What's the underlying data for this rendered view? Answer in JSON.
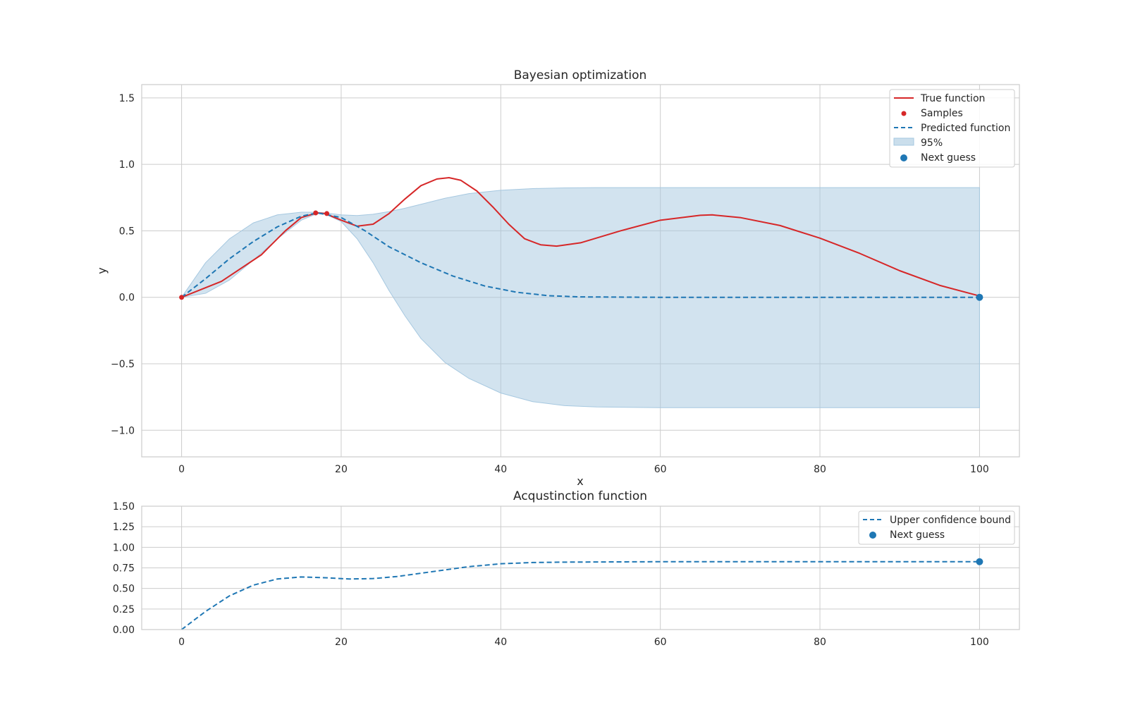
{
  "chart_data": [
    {
      "type": "line",
      "title": "Bayesian optimization",
      "xlabel": "x",
      "ylabel": "y",
      "xlim": [
        -5,
        105
      ],
      "ylim": [
        -1.2,
        1.6
      ],
      "xticks": [
        0,
        20,
        40,
        60,
        80,
        100
      ],
      "yticks": [
        -1.0,
        -0.5,
        0.0,
        0.5,
        1.0,
        1.5
      ],
      "xtick_labels": [
        "0",
        "20",
        "40",
        "60",
        "80",
        "100"
      ],
      "ytick_labels": [
        "−1.0",
        "−0.5",
        "0.0",
        "0.5",
        "1.0",
        "1.5"
      ],
      "grid": true,
      "legend_position": "top-right",
      "colors": {
        "true_function": "#d62728",
        "predicted": "#1f77b4",
        "band": "#a6c8e0",
        "next_guess": "#1f77b4"
      },
      "series": [
        {
          "name": "True function",
          "kind": "line",
          "x": [
            0,
            5,
            10,
            13,
            15,
            17,
            18,
            20,
            22,
            24,
            26,
            28,
            30,
            32,
            33.5,
            35,
            37,
            39,
            41,
            43,
            45,
            47,
            50,
            55,
            60,
            65,
            66.5,
            70,
            75,
            80,
            85,
            90,
            95,
            100
          ],
          "y": [
            0.0,
            0.12,
            0.32,
            0.5,
            0.6,
            0.635,
            0.63,
            0.58,
            0.535,
            0.55,
            0.63,
            0.74,
            0.84,
            0.89,
            0.9,
            0.88,
            0.8,
            0.68,
            0.55,
            0.44,
            0.395,
            0.385,
            0.41,
            0.5,
            0.58,
            0.617,
            0.62,
            0.6,
            0.54,
            0.445,
            0.33,
            0.2,
            0.09,
            0.01
          ]
        },
        {
          "name": "Samples",
          "kind": "scatter",
          "x": [
            0,
            16.8,
            18.2
          ],
          "y": [
            0.0,
            0.635,
            0.63
          ]
        },
        {
          "name": "Predicted function",
          "kind": "dashed-line",
          "x": [
            0,
            3,
            6,
            9,
            12,
            15,
            17,
            20,
            23,
            26,
            30,
            34,
            38,
            42,
            46,
            50,
            60,
            70,
            80,
            90,
            100
          ],
          "y": [
            0.0,
            0.14,
            0.29,
            0.42,
            0.53,
            0.61,
            0.635,
            0.6,
            0.5,
            0.38,
            0.26,
            0.16,
            0.085,
            0.038,
            0.012,
            0.003,
            0.0,
            0.0,
            0.0,
            0.0,
            0.0
          ]
        },
        {
          "name": "95%",
          "kind": "band",
          "x": [
            0,
            3,
            6,
            9,
            12,
            15,
            17,
            18,
            20,
            22,
            24,
            26,
            28,
            30,
            33,
            36,
            40,
            44,
            48,
            52,
            60,
            70,
            80,
            90,
            100
          ],
          "upper": [
            0.0,
            0.26,
            0.44,
            0.56,
            0.62,
            0.64,
            0.64,
            0.635,
            0.62,
            0.615,
            0.625,
            0.645,
            0.67,
            0.7,
            0.745,
            0.78,
            0.805,
            0.818,
            0.823,
            0.825,
            0.825,
            0.825,
            0.825,
            0.825,
            0.825
          ],
          "lower": [
            0.0,
            0.03,
            0.13,
            0.28,
            0.44,
            0.58,
            0.63,
            0.625,
            0.57,
            0.44,
            0.26,
            0.05,
            -0.14,
            -0.31,
            -0.49,
            -0.61,
            -0.72,
            -0.785,
            -0.815,
            -0.825,
            -0.83,
            -0.83,
            -0.83,
            -0.83,
            -0.83
          ]
        },
        {
          "name": "Next guess",
          "kind": "scatter",
          "x": [
            100
          ],
          "y": [
            0.0
          ]
        }
      ]
    },
    {
      "type": "line",
      "title": "Acqustinction function",
      "xlabel": "",
      "ylabel": "",
      "xlim": [
        -5,
        105
      ],
      "ylim": [
        0.0,
        1.5
      ],
      "xticks": [
        0,
        20,
        40,
        60,
        80,
        100
      ],
      "yticks": [
        0.0,
        0.25,
        0.5,
        0.75,
        1.0,
        1.25,
        1.5
      ],
      "xtick_labels": [
        "0",
        "20",
        "40",
        "60",
        "80",
        "100"
      ],
      "ytick_labels": [
        "0.00",
        "0.25",
        "0.50",
        "0.75",
        "1.00",
        "1.25",
        "1.50"
      ],
      "grid": true,
      "legend_position": "top-right",
      "colors": {
        "ucb": "#1f77b4",
        "next_guess": "#1f77b4"
      },
      "series": [
        {
          "name": "Upper confidence bound",
          "kind": "dashed-line",
          "x": [
            0,
            3,
            6,
            9,
            12,
            15,
            18,
            21,
            24,
            27,
            30,
            33,
            36,
            40,
            44,
            48,
            55,
            60,
            70,
            80,
            90,
            100
          ],
          "y": [
            0.0,
            0.22,
            0.41,
            0.54,
            0.615,
            0.64,
            0.63,
            0.615,
            0.62,
            0.645,
            0.685,
            0.725,
            0.765,
            0.8,
            0.815,
            0.82,
            0.823,
            0.825,
            0.825,
            0.825,
            0.825,
            0.825
          ]
        },
        {
          "name": "Next guess",
          "kind": "scatter",
          "x": [
            100
          ],
          "y": [
            0.825
          ]
        }
      ]
    }
  ]
}
